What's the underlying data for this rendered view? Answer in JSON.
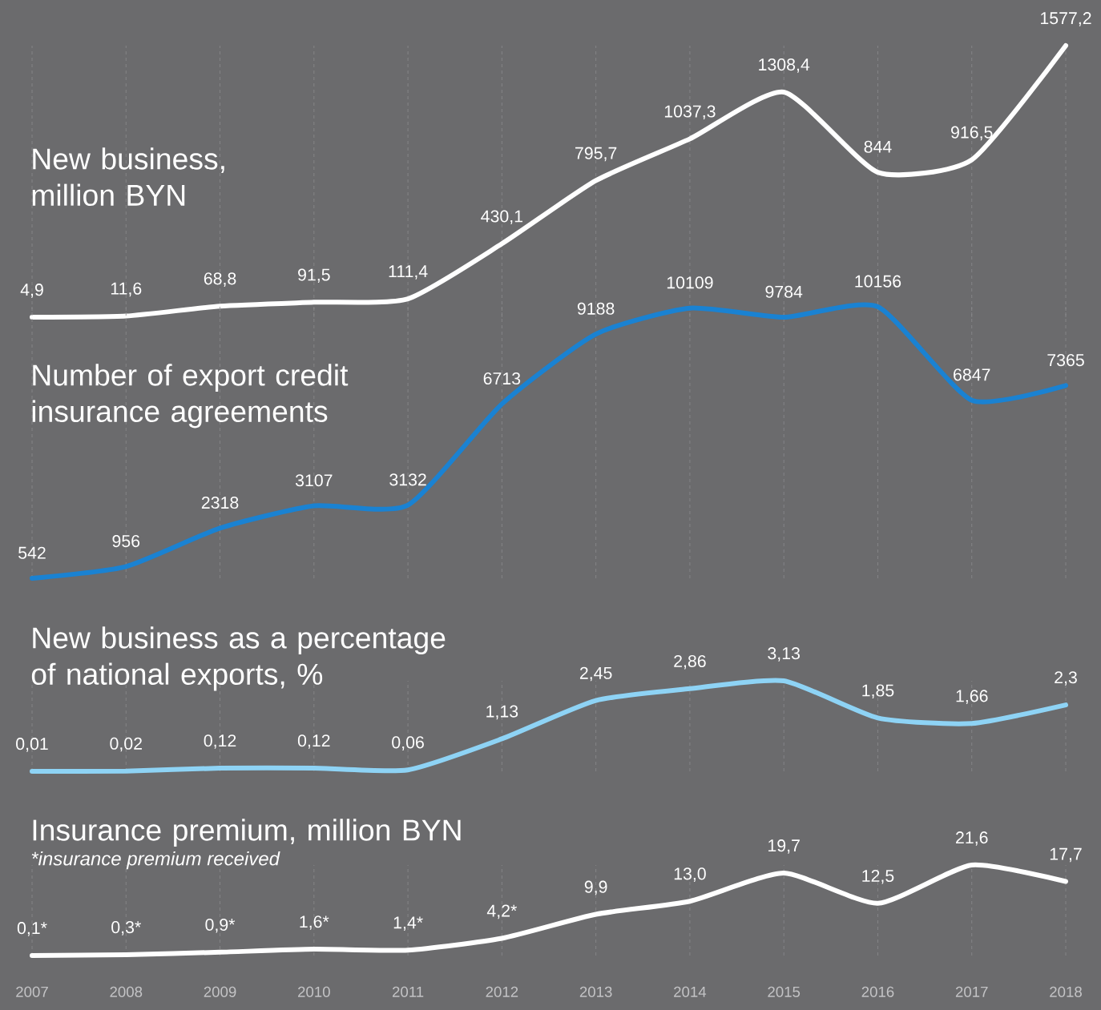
{
  "chart_data": [
    {
      "type": "line",
      "title": "New business, million BYN",
      "color": "#ffffff",
      "grid": "x",
      "tick_labels": false,
      "categories": [
        "2007",
        "2008",
        "2009",
        "2010",
        "2011",
        "2012",
        "2013",
        "2014",
        "2015",
        "2016",
        "2017",
        "2018"
      ],
      "values": [
        4.9,
        11.6,
        68.8,
        91.5,
        111.4,
        430.1,
        795.7,
        1037.3,
        1308.4,
        844,
        916.5,
        1577.2
      ],
      "value_labels": [
        "4,9",
        "11,6",
        "68,8",
        "91,5",
        "111,4",
        "430,1",
        "795,7",
        "1037,3",
        "1308,4",
        "844",
        "916,5",
        "1577,2"
      ]
    },
    {
      "type": "line",
      "title": "Number of export credit insurance agreements",
      "color": "#1a82d2",
      "grid": "x",
      "tick_labels": false,
      "categories": [
        "2007",
        "2008",
        "2009",
        "2010",
        "2011",
        "2012",
        "2013",
        "2014",
        "2015",
        "2016",
        "2017",
        "2018"
      ],
      "values": [
        542,
        956,
        2318,
        3107,
        3132,
        6713,
        9188,
        10109,
        9784,
        10156,
        6847,
        7365
      ],
      "value_labels": [
        "542",
        "956",
        "2318",
        "3107",
        "3132",
        "6713",
        "9188",
        "10109",
        "9784",
        "10156",
        "6847",
        "7365"
      ]
    },
    {
      "type": "line",
      "title": "New business as a percentage of national exports, %",
      "color": "#8ed3f5",
      "grid": "x",
      "tick_labels": false,
      "categories": [
        "2007",
        "2008",
        "2009",
        "2010",
        "2011",
        "2012",
        "2013",
        "2014",
        "2015",
        "2016",
        "2017",
        "2018"
      ],
      "values": [
        0.01,
        0.02,
        0.12,
        0.12,
        0.06,
        1.13,
        2.45,
        2.86,
        3.13,
        1.85,
        1.66,
        2.3
      ],
      "value_labels": [
        "0,01",
        "0,02",
        "0,12",
        "0,12",
        "0,06",
        "1,13",
        "2,45",
        "2,86",
        "3,13",
        "1,85",
        "1,66",
        "2,3"
      ]
    },
    {
      "type": "line",
      "title": "Insurance premium, million BYN",
      "color": "#ffffff",
      "grid": "x",
      "tick_labels": "x",
      "annotations": [
        "*insurance premium received"
      ],
      "categories": [
        "2007",
        "2008",
        "2009",
        "2010",
        "2011",
        "2012",
        "2013",
        "2014",
        "2015",
        "2016",
        "2017",
        "2018"
      ],
      "values": [
        0.1,
        0.3,
        0.9,
        1.6,
        1.4,
        4.2,
        9.9,
        13.0,
        19.7,
        12.5,
        21.6,
        17.7
      ],
      "value_labels": [
        "0,1*",
        "0,3*",
        "0,9*",
        "1,6*",
        "1,4*",
        "4,2*",
        "9,9",
        "13,0",
        "19,7",
        "12,5",
        "21,6",
        "17,7"
      ]
    }
  ]
}
